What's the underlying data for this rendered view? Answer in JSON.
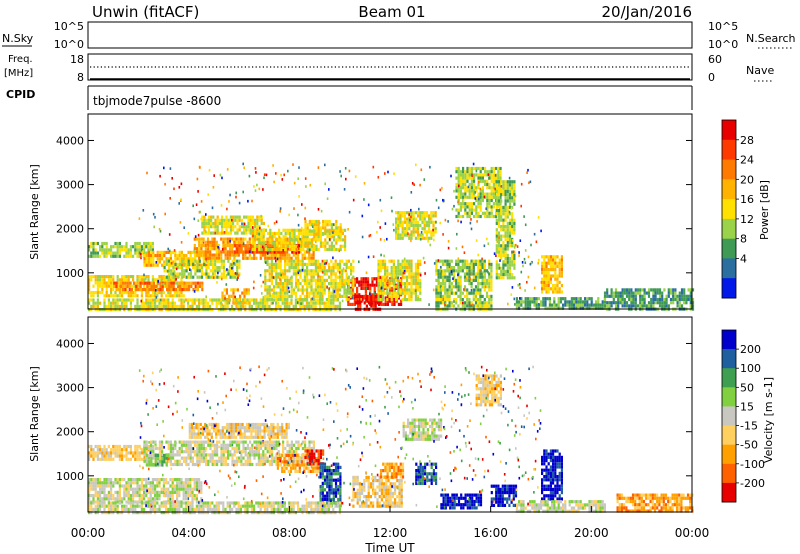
{
  "header": {
    "station": "Unwin (fitACF)",
    "beam": "Beam 01",
    "date": "20/Jan/2016"
  },
  "panels": {
    "nsky": {
      "label": "N.Sky",
      "ticks": [
        "10^5",
        "10^0"
      ],
      "right_ticks": [
        "10^5",
        "10^0"
      ],
      "right_label": "N.Search"
    },
    "freq": {
      "label_line1": "Freq.",
      "label_line2": "[MHz]",
      "ticks": [
        "18",
        "8"
      ],
      "right_ticks": [
        "60",
        "0"
      ],
      "right_label": "Nave"
    },
    "cpid": {
      "label": "CPID",
      "mode": "tbjmode7pulse  -8600"
    }
  },
  "chart_data": [
    {
      "type": "heatmap",
      "name": "power",
      "ylabel": "Slant Range [km]",
      "yticks": [
        1000,
        2000,
        3000,
        4000
      ],
      "ylim": [
        180,
        4600
      ],
      "xlim": [
        0,
        24
      ],
      "colorbar": {
        "label": "Power [dB]",
        "ticks": [
          "28",
          "24",
          "20",
          "16",
          "12",
          "8",
          "4"
        ],
        "colors": [
          "#e80000",
          "#ff3a00",
          "#ff7a00",
          "#ffb300",
          "#ffe000",
          "#9ad24a",
          "#3f9a55",
          "#2b6fa0",
          "#0018e8"
        ]
      },
      "blobs": [
        {
          "t0": 0.0,
          "t1": 3.8,
          "r0": 450,
          "r1": 950,
          "v": 16
        },
        {
          "t0": 1.0,
          "t1": 4.5,
          "r0": 600,
          "r1": 800,
          "v": 22
        },
        {
          "t0": 0.0,
          "t1": 2.6,
          "r0": 1400,
          "r1": 1700,
          "v": 12
        },
        {
          "t0": 2.2,
          "t1": 4.8,
          "r0": 1200,
          "r1": 1500,
          "v": 18
        },
        {
          "t0": 4.2,
          "t1": 9.0,
          "r0": 1300,
          "r1": 1800,
          "v": 20
        },
        {
          "t0": 5.8,
          "t1": 8.4,
          "r0": 1450,
          "r1": 1650,
          "v": 25
        },
        {
          "t0": 3.0,
          "t1": 6.0,
          "r0": 900,
          "r1": 1300,
          "v": 12
        },
        {
          "t0": 5.3,
          "t1": 6.4,
          "r0": 300,
          "r1": 650,
          "v": 20
        },
        {
          "t0": 6.5,
          "t1": 10.2,
          "r0": 1500,
          "r1": 2000,
          "v": 14
        },
        {
          "t0": 8.6,
          "t1": 10.0,
          "r0": 1900,
          "r1": 2200,
          "v": 16
        },
        {
          "t0": 10.3,
          "t1": 12.4,
          "r0": 300,
          "r1": 900,
          "v": 28
        },
        {
          "t0": 10.6,
          "t1": 11.6,
          "r0": 200,
          "r1": 500,
          "v": 30
        },
        {
          "t0": 11.5,
          "t1": 13.2,
          "r0": 400,
          "r1": 1300,
          "v": 14
        },
        {
          "t0": 12.2,
          "t1": 13.8,
          "r0": 1800,
          "r1": 2400,
          "v": 14
        },
        {
          "t0": 4.5,
          "t1": 7.0,
          "r0": 1900,
          "r1": 2300,
          "v": 14
        },
        {
          "t0": 14.6,
          "t1": 16.4,
          "r0": 2300,
          "r1": 3400,
          "v": 12
        },
        {
          "t0": 13.8,
          "t1": 16.0,
          "r0": 200,
          "r1": 1300,
          "v": 11
        },
        {
          "t0": 16.2,
          "t1": 16.9,
          "r0": 900,
          "r1": 3100,
          "v": 12
        },
        {
          "t0": 18.0,
          "t1": 18.8,
          "r0": 600,
          "r1": 1400,
          "v": 18
        },
        {
          "t0": 17.0,
          "t1": 20.5,
          "r0": 200,
          "r1": 450,
          "v": 8
        },
        {
          "t0": 20.5,
          "t1": 24.0,
          "r0": 200,
          "r1": 650,
          "v": 7
        },
        {
          "t0": 0.0,
          "t1": 10.0,
          "r0": 200,
          "r1": 420,
          "v": 14
        },
        {
          "t0": 7.0,
          "t1": 10.5,
          "r0": 400,
          "r1": 1300,
          "v": 14
        }
      ]
    },
    {
      "type": "heatmap",
      "name": "velocity",
      "xlabel": "Time UT",
      "ylabel": "Slant Range [km]",
      "yticks": [
        1000,
        2000,
        3000,
        4000
      ],
      "ylim": [
        180,
        4600
      ],
      "xlim": [
        0,
        24
      ],
      "xticks": [
        "00:00",
        "04:00",
        "08:00",
        "12:00",
        "16:00",
        "20:00",
        "00:00"
      ],
      "colorbar": {
        "label": "Velocity [m s-1]",
        "ticks": [
          "200",
          "100",
          "50",
          "15",
          "-15",
          "-50",
          "-100",
          "-200"
        ],
        "colors": [
          "#0000cc",
          "#1f5fa0",
          "#3f9f50",
          "#80d040",
          "#c8c8c0",
          "#ffd060",
          "#ffa000",
          "#ff6000",
          "#e80000"
        ]
      },
      "blobs": [
        {
          "t0": 0.0,
          "t1": 4.5,
          "r0": 400,
          "r1": 950,
          "v": 4
        },
        {
          "t0": 0.0,
          "t1": 2.6,
          "r0": 1400,
          "r1": 1700,
          "v": 5
        },
        {
          "t0": 2.2,
          "t1": 9.0,
          "r0": 1250,
          "r1": 1800,
          "v": 4
        },
        {
          "t0": 2.3,
          "t1": 3.1,
          "r0": 1250,
          "r1": 1500,
          "v": 3
        },
        {
          "t0": 7.5,
          "t1": 9.2,
          "r0": 1100,
          "r1": 1500,
          "v": 6
        },
        {
          "t0": 8.6,
          "t1": 9.3,
          "r0": 1300,
          "r1": 1600,
          "v": 8
        },
        {
          "t0": 9.2,
          "t1": 10.0,
          "r0": 300,
          "r1": 1300,
          "v": 1
        },
        {
          "t0": 10.5,
          "t1": 12.5,
          "r0": 300,
          "r1": 1000,
          "v": 5
        },
        {
          "t0": 11.6,
          "t1": 12.5,
          "r0": 1000,
          "r1": 1300,
          "v": 6
        },
        {
          "t0": 13.0,
          "t1": 13.8,
          "r0": 800,
          "r1": 1300,
          "v": 1
        },
        {
          "t0": 14.0,
          "t1": 15.6,
          "r0": 300,
          "r1": 600,
          "v": 0
        },
        {
          "t0": 15.4,
          "t1": 16.4,
          "r0": 2600,
          "r1": 3300,
          "v": 5
        },
        {
          "t0": 16.0,
          "t1": 17.0,
          "r0": 300,
          "r1": 800,
          "v": 0
        },
        {
          "t0": 18.0,
          "t1": 18.8,
          "r0": 500,
          "r1": 1600,
          "v": 0
        },
        {
          "t0": 17.0,
          "t1": 20.5,
          "r0": 200,
          "r1": 450,
          "v": 4
        },
        {
          "t0": 21.0,
          "t1": 24.0,
          "r0": 200,
          "r1": 600,
          "v": 6
        },
        {
          "t0": 0.0,
          "t1": 10.0,
          "r0": 200,
          "r1": 420,
          "v": 4
        },
        {
          "t0": 4.0,
          "t1": 8.0,
          "r0": 1900,
          "r1": 2200,
          "v": 5
        },
        {
          "t0": 12.5,
          "t1": 14.0,
          "r0": 1800,
          "r1": 2300,
          "v": 4
        }
      ]
    }
  ]
}
